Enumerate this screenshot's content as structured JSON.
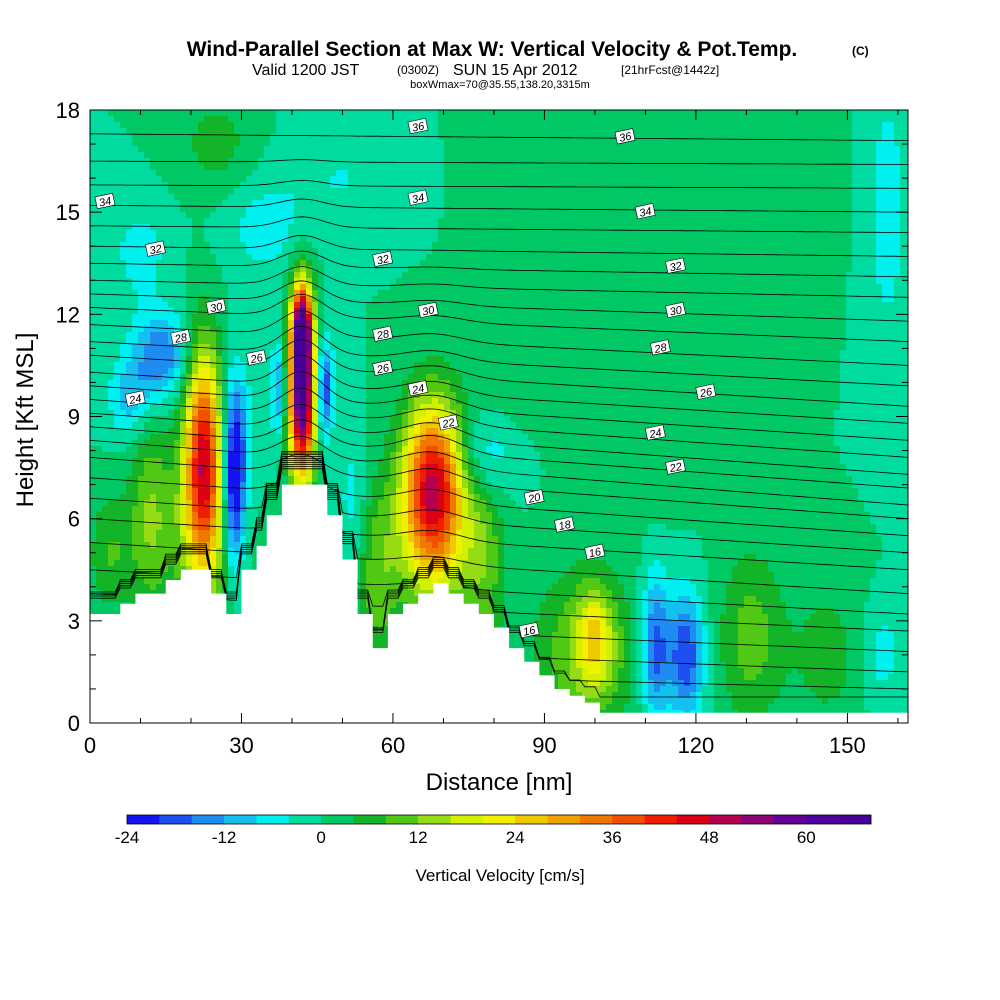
{
  "chart_data": {
    "type": "heatmap",
    "title": "Wind-Parallel Section at Max W: Vertical Velocity & Pot.Temp.",
    "title_mark": "(C)",
    "subtitle_pre": "Valid 1200 JST",
    "subtitle_z": "(0300Z)",
    "subtitle_date": "SUN 15 Apr 2012",
    "subtitle_fcst": "[21hrFcst@1442z]",
    "subtitle2": "boxWmax=70@35.55,138.20,3315m",
    "xlabel": "Distance [nm]",
    "ylabel": "Height [Kft MSL]",
    "xlim": [
      0,
      162
    ],
    "ylim": [
      0,
      18
    ],
    "x_ticks": [
      0,
      30,
      60,
      90,
      120,
      150
    ],
    "y_ticks": [
      0,
      3,
      6,
      9,
      12,
      15,
      18
    ],
    "colorbar_label": "Vertical Velocity [cm/s]",
    "colorbar_ticks": [
      -24,
      -12,
      0,
      12,
      24,
      36,
      48,
      60
    ],
    "colorbar_range": [
      -24,
      68
    ],
    "colorbar_step": 4,
    "colorbar_colors": [
      "#1414f0",
      "#1e50f0",
      "#1e8cf0",
      "#14c0f0",
      "#00f0f0",
      "#00dca0",
      "#00c864",
      "#14b428",
      "#50c814",
      "#96dc14",
      "#d2f000",
      "#f0f000",
      "#f0c800",
      "#f0a000",
      "#f07800",
      "#f05000",
      "#f01e00",
      "#dc0014",
      "#b40050",
      "#8c0078",
      "#640096",
      "#50009c",
      "#460096"
    ],
    "background_value": 0,
    "w_features": [
      {
        "x": 22.5,
        "h": 7.8,
        "sx": 2.6,
        "sh": 2.2,
        "w": 44
      },
      {
        "x": 22.0,
        "h": 5.5,
        "sx": 4.5,
        "sh": 1.8,
        "w": 10
      },
      {
        "x": 28.5,
        "h": 6.8,
        "sx": 1.5,
        "sh": 1.6,
        "w": -24
      },
      {
        "x": 29.0,
        "h": 8.5,
        "sx": 2.0,
        "sh": 1.5,
        "w": -12
      },
      {
        "x": 42.0,
        "h": 9.8,
        "sx": 1.8,
        "sh": 1.8,
        "w": 68
      },
      {
        "x": 42.0,
        "h": 11.6,
        "sx": 1.2,
        "sh": 0.8,
        "w": 40
      },
      {
        "x": 46.5,
        "h": 9.8,
        "sx": 1.2,
        "sh": 1.0,
        "w": -20
      },
      {
        "x": 37.5,
        "h": 9.8,
        "sx": 1.2,
        "sh": 1.0,
        "w": -14
      },
      {
        "x": 68.0,
        "h": 7.0,
        "sx": 4.2,
        "sh": 1.7,
        "w": 46
      },
      {
        "x": 68.0,
        "h": 5.0,
        "sx": 5.5,
        "sh": 1.5,
        "w": 10
      },
      {
        "x": 14.0,
        "h": 10.8,
        "sx": 4.0,
        "sh": 0.9,
        "w": -16
      },
      {
        "x": 8.0,
        "h": 9.5,
        "sx": 3.0,
        "sh": 0.8,
        "w": -10
      },
      {
        "x": 4.0,
        "h": 5.0,
        "sx": 3.0,
        "sh": 1.2,
        "w": 8
      },
      {
        "x": 12.0,
        "h": 6.0,
        "sx": 3.0,
        "sh": 2.0,
        "w": 12
      },
      {
        "x": 52.0,
        "h": 6.5,
        "sx": 2.0,
        "sh": 1.5,
        "w": -6
      },
      {
        "x": 57.0,
        "h": 4.2,
        "sx": 3.0,
        "sh": 2.0,
        "w": 10
      },
      {
        "x": 78.0,
        "h": 5.0,
        "sx": 3.0,
        "sh": 2.2,
        "w": 10
      },
      {
        "x": 78.0,
        "h": 7.8,
        "sx": 4.0,
        "sh": 1.0,
        "w": -10
      },
      {
        "x": 98.0,
        "h": 2.0,
        "sx": 7.0,
        "sh": 1.7,
        "w": 12
      },
      {
        "x": 100.0,
        "h": 2.5,
        "sx": 2.5,
        "sh": 1.0,
        "w": 16
      },
      {
        "x": 112.0,
        "h": 2.2,
        "sx": 2.0,
        "sh": 1.5,
        "w": -18
      },
      {
        "x": 118.0,
        "h": 2.0,
        "sx": 2.5,
        "sh": 1.3,
        "w": -20
      },
      {
        "x": 131.0,
        "h": 2.5,
        "sx": 4.5,
        "sh": 1.8,
        "w": 10
      },
      {
        "x": 146.0,
        "h": 2.0,
        "sx": 5.0,
        "sh": 1.5,
        "w": 6
      },
      {
        "x": 157.0,
        "h": 2.0,
        "sx": 3.0,
        "sh": 1.0,
        "w": -6
      },
      {
        "x": 10.0,
        "h": 13.8,
        "sx": 4.0,
        "sh": 1.0,
        "w": -6
      },
      {
        "x": 35.0,
        "h": 14.5,
        "sx": 6.0,
        "sh": 1.0,
        "w": -6
      },
      {
        "x": 50.0,
        "h": 16.0,
        "sx": 8.0,
        "sh": 1.0,
        "w": -4
      },
      {
        "x": 25.0,
        "h": 17.0,
        "sx": 5.0,
        "sh": 1.0,
        "w": 6
      },
      {
        "x": 85.0,
        "h": 16.0,
        "sx": 6.0,
        "sh": 1.5,
        "w": 4
      },
      {
        "x": 84.0,
        "h": 10.5,
        "sx": 5.0,
        "sh": 1.2,
        "w": 4
      },
      {
        "x": 140.0,
        "h": 16.0,
        "sx": 5.0,
        "sh": 2.0,
        "w": 4
      },
      {
        "x": 158.0,
        "h": 15.0,
        "sx": 3.0,
        "sh": 3.0,
        "w": -6
      },
      {
        "x": 110.0,
        "h": 7.5,
        "sx": 6.0,
        "sh": 1.2,
        "w": 2
      }
    ],
    "terrain": [
      [
        0,
        3.2
      ],
      [
        6,
        3.5
      ],
      [
        9,
        3.8
      ],
      [
        15,
        4.2
      ],
      [
        18,
        4.5
      ],
      [
        24,
        3.8
      ],
      [
        27,
        3.2
      ],
      [
        30,
        4.5
      ],
      [
        33,
        5.2
      ],
      [
        35,
        6.1
      ],
      [
        38,
        7.0
      ],
      [
        44,
        7.0
      ],
      [
        47,
        6.1
      ],
      [
        50,
        4.8
      ],
      [
        53,
        3.2
      ],
      [
        56,
        2.2
      ],
      [
        59,
        3.2
      ],
      [
        62,
        3.5
      ],
      [
        65,
        3.8
      ],
      [
        68,
        4.1
      ],
      [
        71,
        3.8
      ],
      [
        74,
        3.5
      ],
      [
        77,
        3.2
      ],
      [
        80,
        2.8
      ],
      [
        83,
        2.2
      ],
      [
        86,
        1.8
      ],
      [
        89,
        1.4
      ],
      [
        92,
        1.0
      ],
      [
        95,
        0.8
      ],
      [
        98,
        0.6
      ],
      [
        101,
        0.3
      ],
      [
        162,
        0.3
      ]
    ],
    "theta_levels": [
      {
        "z0": 0.8,
        "z1": 0.5
      },
      {
        "z0": 1.6,
        "z1": 1.0
      },
      {
        "z0": 2.4,
        "z1": 1.5
      },
      {
        "z0": 3.1,
        "z1": 2.1
      },
      {
        "z0": 3.8,
        "z1": 2.7
      },
      {
        "z0": 4.5,
        "z1": 3.2
      },
      {
        "z0": 5.3,
        "z1": 3.8
      },
      {
        "z0": 6.0,
        "z1": 4.5
      },
      {
        "z0": 6.6,
        "z1": 5.0
      },
      {
        "z0": 7.2,
        "z1": 5.5
      },
      {
        "z0": 7.8,
        "z1": 6.0
      },
      {
        "z0": 8.3,
        "z1": 6.4
      },
      {
        "z0": 8.7,
        "z1": 6.9
      },
      {
        "z0": 9.1,
        "z1": 7.3
      },
      {
        "z0": 9.5,
        "z1": 7.8
      },
      {
        "z0": 9.9,
        "z1": 8.3
      },
      {
        "z0": 10.3,
        "z1": 8.8
      },
      {
        "z0": 10.8,
        "z1": 9.3
      },
      {
        "z0": 11.2,
        "z1": 9.9
      },
      {
        "z0": 11.7,
        "z1": 10.5
      },
      {
        "z0": 12.2,
        "z1": 11.2
      },
      {
        "z0": 12.6,
        "z1": 11.8
      },
      {
        "z0": 13.0,
        "z1": 12.5
      },
      {
        "z0": 13.5,
        "z1": 13.1
      },
      {
        "z0": 14.0,
        "z1": 13.7
      },
      {
        "z0": 14.6,
        "z1": 14.4
      },
      {
        "z0": 15.2,
        "z1": 15.0
      },
      {
        "z0": 15.8,
        "z1": 15.7
      },
      {
        "z0": 16.5,
        "z1": 16.4
      },
      {
        "z0": 17.3,
        "z1": 17.1
      }
    ],
    "theta_labels": [
      {
        "text": "36",
        "x": 65,
        "h": 17.5
      },
      {
        "text": "36",
        "x": 106,
        "h": 17.2
      },
      {
        "text": "34",
        "x": 3,
        "h": 15.3
      },
      {
        "text": "34",
        "x": 65,
        "h": 15.4
      },
      {
        "text": "34",
        "x": 110,
        "h": 15.0
      },
      {
        "text": "32",
        "x": 13,
        "h": 13.9
      },
      {
        "text": "32",
        "x": 58,
        "h": 13.6
      },
      {
        "text": "32",
        "x": 116,
        "h": 13.4
      },
      {
        "text": "30",
        "x": 25,
        "h": 12.2
      },
      {
        "text": "30",
        "x": 67,
        "h": 12.1
      },
      {
        "text": "30",
        "x": 116,
        "h": 12.1
      },
      {
        "text": "28",
        "x": 18,
        "h": 11.3
      },
      {
        "text": "28",
        "x": 58,
        "h": 11.4
      },
      {
        "text": "28",
        "x": 113,
        "h": 11.0
      },
      {
        "text": "26",
        "x": 33,
        "h": 10.7
      },
      {
        "text": "26",
        "x": 58,
        "h": 10.4
      },
      {
        "text": "26",
        "x": 122,
        "h": 9.7
      },
      {
        "text": "24",
        "x": 9,
        "h": 9.5
      },
      {
        "text": "24",
        "x": 65,
        "h": 9.8
      },
      {
        "text": "24",
        "x": 112,
        "h": 8.5
      },
      {
        "text": "22",
        "x": 71,
        "h": 8.8
      },
      {
        "text": "22",
        "x": 116,
        "h": 7.5
      },
      {
        "text": "20",
        "x": 88,
        "h": 6.6
      },
      {
        "text": "18",
        "x": 94,
        "h": 5.8
      },
      {
        "text": "16",
        "x": 100,
        "h": 5.0
      },
      {
        "text": "16",
        "x": 87,
        "h": 2.7
      }
    ]
  }
}
